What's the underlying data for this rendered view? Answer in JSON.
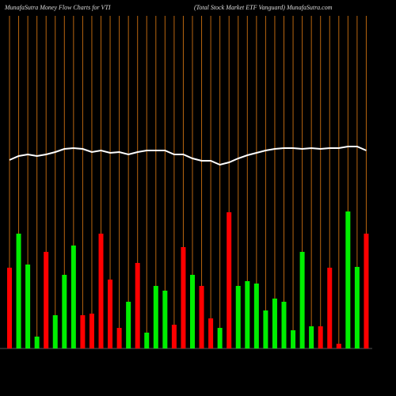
{
  "chart_data": {
    "type": "bar-line",
    "title": "MunafaSutra  Money Flow  Charts for VTI",
    "subtitle": "(Total Stock Market ETF Vanguard) MunafaSutra.com",
    "ylim": [
      0,
      440
    ],
    "line_color": "#ffffff",
    "grid_color": "#b8650f",
    "series": [
      {
        "name": "Money Flow",
        "values": [
          102,
          145,
          106,
          15,
          122,
          42,
          93,
          130,
          42,
          44,
          145,
          87,
          26,
          59,
          108,
          20,
          79,
          73,
          30,
          128,
          93,
          79,
          38,
          26,
          172,
          79,
          85,
          82,
          48,
          63,
          59,
          23,
          122,
          28,
          28,
          102,
          6,
          173,
          103,
          145
        ],
        "colors": [
          "#ff0000",
          "#00ee00",
          "#00ee00",
          "#00ee00",
          "#ff0000",
          "#00ee00",
          "#00ee00",
          "#00ee00",
          "#ff0000",
          "#ff0000",
          "#ff0000",
          "#ff0000",
          "#ff0000",
          "#00ee00",
          "#ff0000",
          "#00ee00",
          "#00ee00",
          "#00ee00",
          "#ff0000",
          "#ff0000",
          "#00ee00",
          "#ff0000",
          "#ff0000",
          "#00ee00",
          "#ff0000",
          "#00ee00",
          "#00ee00",
          "#00ee00",
          "#00ee00",
          "#00ee00",
          "#00ee00",
          "#00ee00",
          "#00ee00",
          "#00ee00",
          "#ff0000",
          "#ff0000",
          "#ff0000",
          "#00ee00",
          "#00ee00",
          "#ff0000"
        ]
      },
      {
        "name": "Price",
        "values": [
          238,
          243,
          245,
          243,
          245,
          248,
          252,
          253,
          252,
          248,
          250,
          247,
          248,
          245,
          248,
          250,
          250,
          250,
          245,
          245,
          240,
          237,
          237,
          232,
          235,
          240,
          244,
          247,
          250,
          252,
          253,
          253,
          252,
          253,
          252,
          253,
          253,
          255,
          255,
          250
        ]
      }
    ]
  }
}
